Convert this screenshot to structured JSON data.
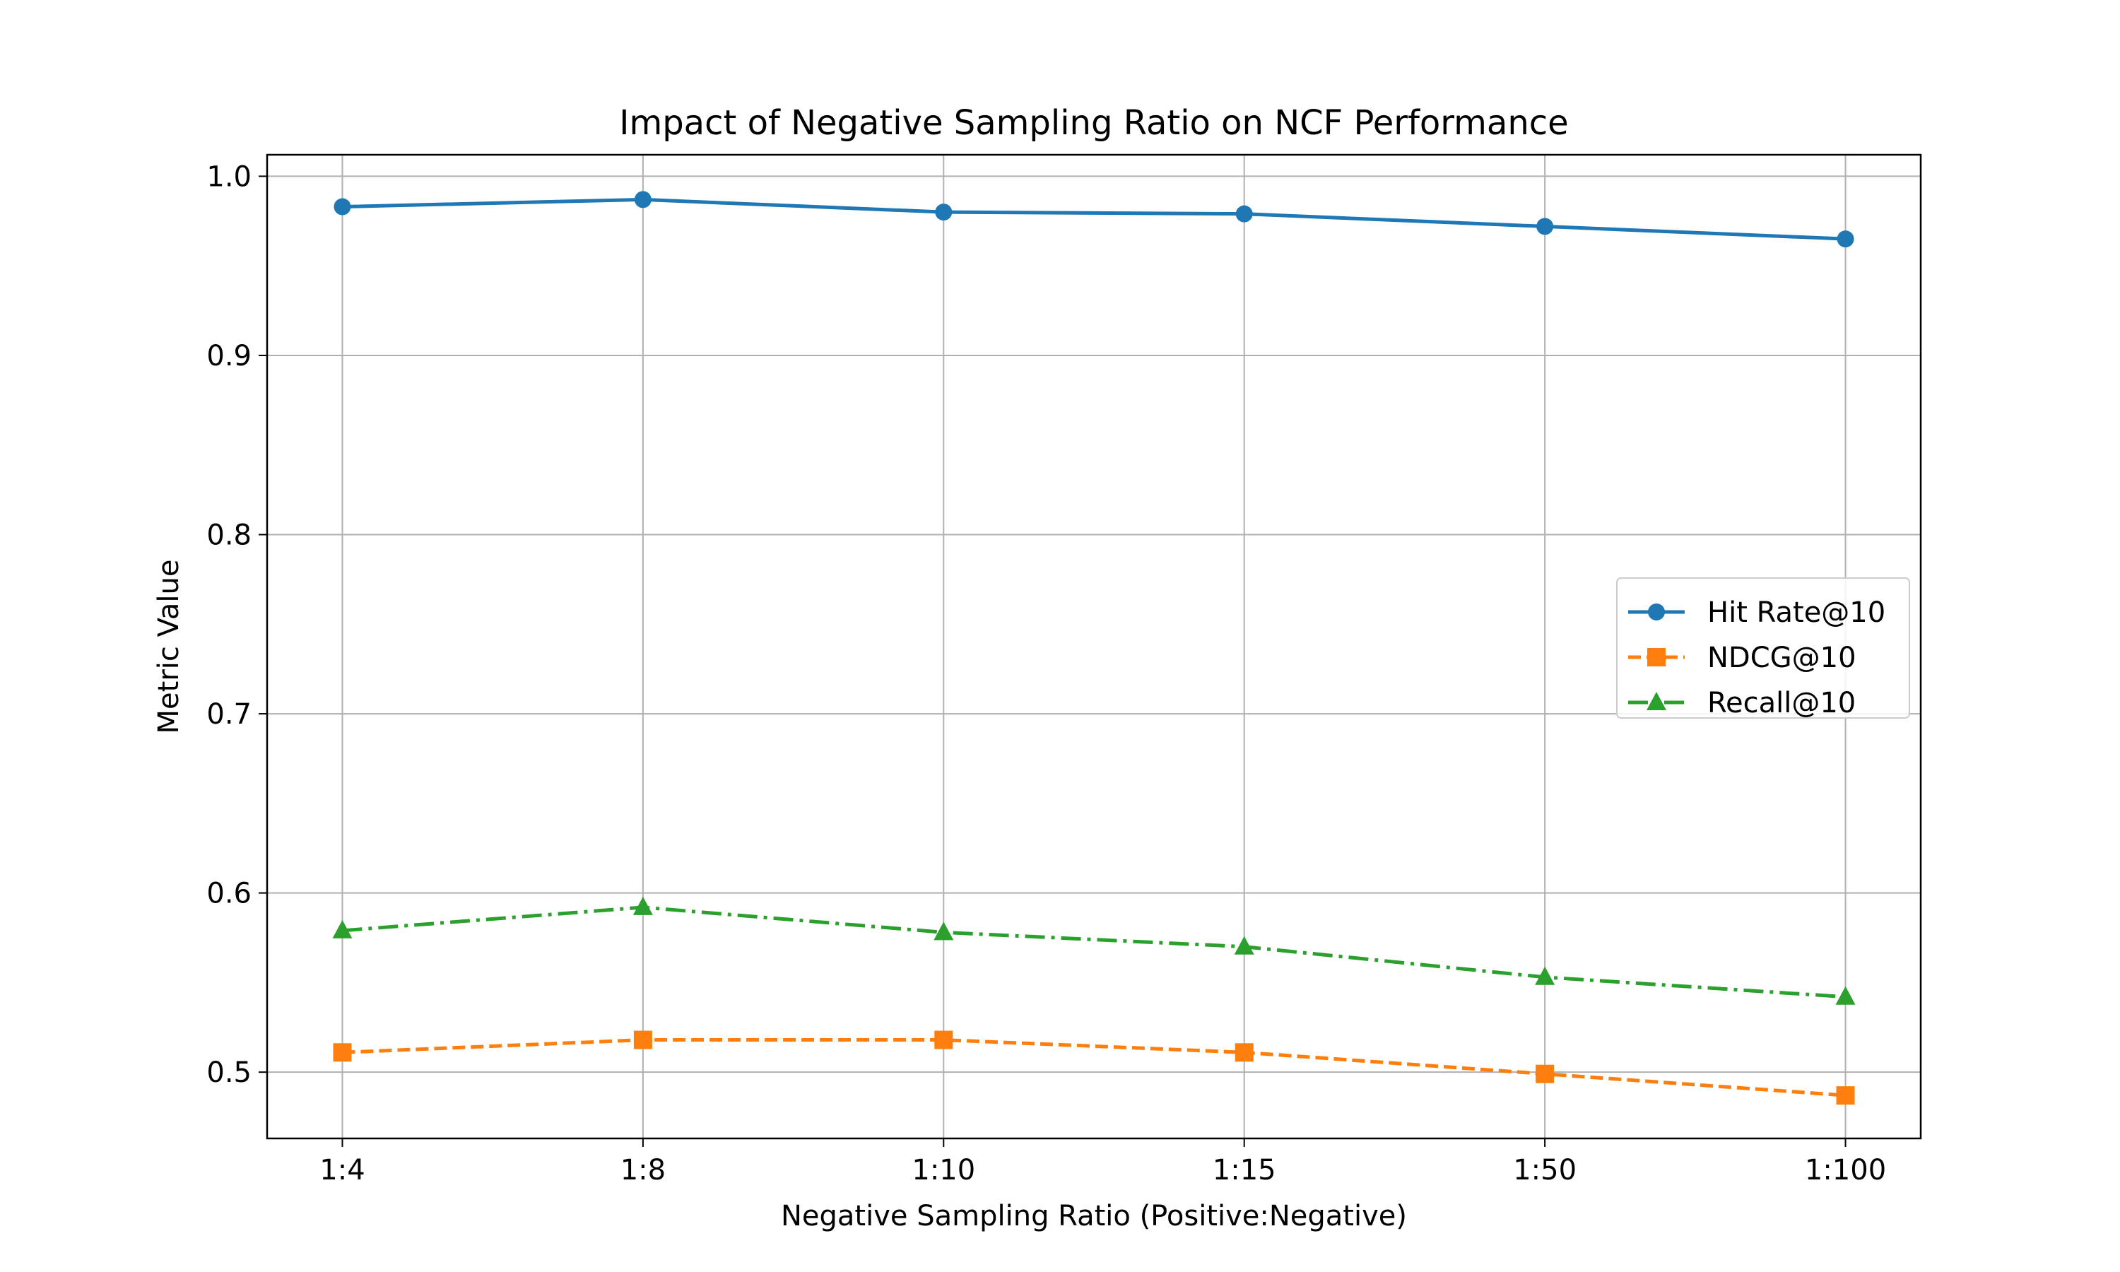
{
  "chart_data": {
    "type": "line",
    "title": "Impact of Negative Sampling Ratio on NCF Performance",
    "xlabel": "Negative Sampling Ratio (Positive:Negative)",
    "ylabel": "Metric Value",
    "categories": [
      "1:4",
      "1:8",
      "1:10",
      "1:15",
      "1:50",
      "1:100"
    ],
    "ylim": [
      0.463,
      1.012
    ],
    "yticks": [
      0.5,
      0.6,
      0.7,
      0.8,
      0.9,
      1.0
    ],
    "ytick_labels": [
      "0.5",
      "0.6",
      "0.7",
      "0.8",
      "0.9",
      "1.0"
    ],
    "grid": true,
    "legend_position": "center-right",
    "series": [
      {
        "name": "Hit Rate@10",
        "values": [
          0.983,
          0.987,
          0.98,
          0.979,
          0.972,
          0.965
        ],
        "color": "#1f77b4",
        "marker": "circle",
        "linestyle": "solid"
      },
      {
        "name": "NDCG@10",
        "values": [
          0.511,
          0.518,
          0.518,
          0.511,
          0.499,
          0.487
        ],
        "color": "#ff7f0e",
        "marker": "square",
        "linestyle": "dashed"
      },
      {
        "name": "Recall@10",
        "values": [
          0.579,
          0.592,
          0.578,
          0.57,
          0.553,
          0.542
        ],
        "color": "#2ca02c",
        "marker": "triangle",
        "linestyle": "dashdot"
      }
    ]
  }
}
